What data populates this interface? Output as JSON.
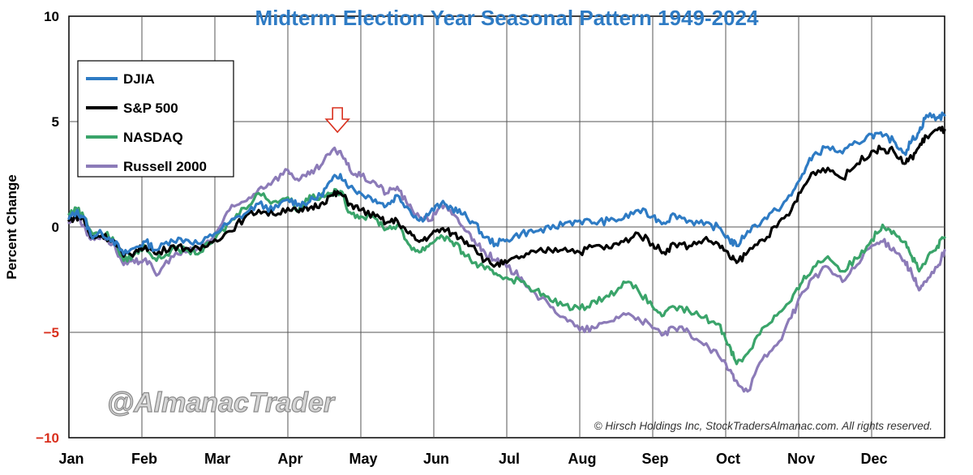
{
  "chart_data": {
    "type": "line",
    "title": "Midterm Election Year Seasonal Pattern 1949-2024",
    "ylabel": "Percent Change",
    "xlabel": "",
    "ylim": [
      -10,
      10
    ],
    "yticks": [
      10,
      5,
      0,
      -5,
      -10
    ],
    "ytick_labels": [
      "10",
      "5",
      "0",
      "−5",
      "−10"
    ],
    "months": [
      "Jan",
      "Feb",
      "Mar",
      "Apr",
      "May",
      "Jun",
      "Jul",
      "Aug",
      "Sep",
      "Oct",
      "Nov",
      "Dec"
    ],
    "x_domain": [
      0,
      12
    ],
    "grid": true,
    "legend_position": "top-left",
    "annotation": "down-arrow above late-April peak",
    "annotation_x": 3.68,
    "annotation_y": 5.0,
    "copyright": "© Hirsch Holdings Inc, StockTradersAlmanac.com. All rights reserved.",
    "watermark": "@AlmanacTrader",
    "series": [
      {
        "name": "DJIA",
        "color": "#2e7bc4",
        "points": [
          [
            0,
            0.4
          ],
          [
            0.1,
            0.7
          ],
          [
            0.2,
            0.5
          ],
          [
            0.3,
            -0.4
          ],
          [
            0.45,
            -0.3
          ],
          [
            0.6,
            -0.6
          ],
          [
            0.75,
            -1.3
          ],
          [
            0.9,
            -1.0
          ],
          [
            1.05,
            -0.7
          ],
          [
            1.2,
            -1.1
          ],
          [
            1.4,
            -0.6
          ],
          [
            1.6,
            -0.6
          ],
          [
            1.8,
            -0.8
          ],
          [
            2.0,
            -0.3
          ],
          [
            2.2,
            0.2
          ],
          [
            2.4,
            0.6
          ],
          [
            2.6,
            1.1
          ],
          [
            2.8,
            0.8
          ],
          [
            3.0,
            1.3
          ],
          [
            3.15,
            1.1
          ],
          [
            3.3,
            1.2
          ],
          [
            3.45,
            1.5
          ],
          [
            3.6,
            2.2
          ],
          [
            3.72,
            2.5
          ],
          [
            3.85,
            1.9
          ],
          [
            4.0,
            1.6
          ],
          [
            4.2,
            1.3
          ],
          [
            4.35,
            1.0
          ],
          [
            4.5,
            1.5
          ],
          [
            4.65,
            0.9
          ],
          [
            4.8,
            0.3
          ],
          [
            4.95,
            0.7
          ],
          [
            5.1,
            1.1
          ],
          [
            5.25,
            0.9
          ],
          [
            5.4,
            0.6
          ],
          [
            5.55,
            0.2
          ],
          [
            5.7,
            -0.5
          ],
          [
            5.85,
            -0.8
          ],
          [
            6.0,
            -0.6
          ],
          [
            6.2,
            -0.3
          ],
          [
            6.4,
            -0.2
          ],
          [
            6.6,
            -0.1
          ],
          [
            6.8,
            0.2
          ],
          [
            7.0,
            0.3
          ],
          [
            7.2,
            0.2
          ],
          [
            7.4,
            0.3
          ],
          [
            7.6,
            0.4
          ],
          [
            7.8,
            0.8
          ],
          [
            8.0,
            0.5
          ],
          [
            8.15,
            0.2
          ],
          [
            8.3,
            0.6
          ],
          [
            8.5,
            0.3
          ],
          [
            8.7,
            0.1
          ],
          [
            8.9,
            0.0
          ],
          [
            9.05,
            -0.6
          ],
          [
            9.15,
            -0.9
          ],
          [
            9.3,
            -0.2
          ],
          [
            9.5,
            0.3
          ],
          [
            9.7,
            0.8
          ],
          [
            9.9,
            1.5
          ],
          [
            10.05,
            2.5
          ],
          [
            10.2,
            3.4
          ],
          [
            10.4,
            3.8
          ],
          [
            10.6,
            3.5
          ],
          [
            10.8,
            4.0
          ],
          [
            11.0,
            4.4
          ],
          [
            11.15,
            4.3
          ],
          [
            11.3,
            4.1
          ],
          [
            11.45,
            3.5
          ],
          [
            11.55,
            4.1
          ],
          [
            11.65,
            4.5
          ],
          [
            11.75,
            5.3
          ],
          [
            11.9,
            5.2
          ],
          [
            12.0,
            5.3
          ]
        ]
      },
      {
        "name": "S&P 500",
        "color": "#000000",
        "points": [
          [
            0,
            0.3
          ],
          [
            0.1,
            0.5
          ],
          [
            0.2,
            0.4
          ],
          [
            0.3,
            -0.5
          ],
          [
            0.45,
            -0.4
          ],
          [
            0.6,
            -0.6
          ],
          [
            0.75,
            -1.4
          ],
          [
            0.9,
            -1.2
          ],
          [
            1.05,
            -0.9
          ],
          [
            1.2,
            -1.3
          ],
          [
            1.4,
            -0.9
          ],
          [
            1.6,
            -1.0
          ],
          [
            1.8,
            -1.1
          ],
          [
            2.0,
            -0.6
          ],
          [
            2.2,
            -0.2
          ],
          [
            2.4,
            0.4
          ],
          [
            2.6,
            0.8
          ],
          [
            2.8,
            0.6
          ],
          [
            3.0,
            0.9
          ],
          [
            3.15,
            0.7
          ],
          [
            3.3,
            0.9
          ],
          [
            3.45,
            1.1
          ],
          [
            3.6,
            1.5
          ],
          [
            3.72,
            1.6
          ],
          [
            3.85,
            1.1
          ],
          [
            4.0,
            0.8
          ],
          [
            4.2,
            0.5
          ],
          [
            4.35,
            0.2
          ],
          [
            4.5,
            0.3
          ],
          [
            4.65,
            -0.3
          ],
          [
            4.8,
            -0.7
          ],
          [
            4.95,
            -0.4
          ],
          [
            5.1,
            -0.1
          ],
          [
            5.25,
            -0.3
          ],
          [
            5.4,
            -0.6
          ],
          [
            5.55,
            -0.9
          ],
          [
            5.7,
            -1.6
          ],
          [
            5.85,
            -1.8
          ],
          [
            6.0,
            -1.7
          ],
          [
            6.2,
            -1.4
          ],
          [
            6.4,
            -1.2
          ],
          [
            6.6,
            -1.1
          ],
          [
            6.8,
            -1.0
          ],
          [
            7.0,
            -1.2
          ],
          [
            7.2,
            -0.9
          ],
          [
            7.4,
            -1.0
          ],
          [
            7.6,
            -0.7
          ],
          [
            7.8,
            -0.3
          ],
          [
            8.0,
            -0.8
          ],
          [
            8.15,
            -1.2
          ],
          [
            8.3,
            -0.8
          ],
          [
            8.5,
            -0.9
          ],
          [
            8.7,
            -0.6
          ],
          [
            8.9,
            -0.8
          ],
          [
            9.05,
            -1.4
          ],
          [
            9.15,
            -1.7
          ],
          [
            9.3,
            -1.2
          ],
          [
            9.5,
            -0.6
          ],
          [
            9.7,
            0.0
          ],
          [
            9.9,
            0.8
          ],
          [
            10.05,
            1.8
          ],
          [
            10.2,
            2.6
          ],
          [
            10.4,
            2.8
          ],
          [
            10.6,
            2.3
          ],
          [
            10.8,
            3.0
          ],
          [
            11.0,
            3.6
          ],
          [
            11.15,
            3.7
          ],
          [
            11.3,
            3.6
          ],
          [
            11.45,
            3.0
          ],
          [
            11.55,
            3.3
          ],
          [
            11.65,
            3.8
          ],
          [
            11.75,
            4.3
          ],
          [
            11.9,
            4.6
          ],
          [
            12.0,
            4.6
          ]
        ]
      },
      {
        "name": "NASDAQ",
        "color": "#3aa46a",
        "points": [
          [
            0,
            0.6
          ],
          [
            0.1,
            0.9
          ],
          [
            0.2,
            0.5
          ],
          [
            0.3,
            -0.2
          ],
          [
            0.45,
            -0.3
          ],
          [
            0.6,
            -0.5
          ],
          [
            0.75,
            -1.6
          ],
          [
            0.9,
            -1.3
          ],
          [
            1.05,
            -0.9
          ],
          [
            1.2,
            -1.6
          ],
          [
            1.4,
            -1.1
          ],
          [
            1.6,
            -1.1
          ],
          [
            1.8,
            -1.2
          ],
          [
            2.0,
            -0.6
          ],
          [
            2.2,
            0.2
          ],
          [
            2.4,
            0.9
          ],
          [
            2.6,
            1.6
          ],
          [
            2.8,
            1.2
          ],
          [
            3.0,
            1.4
          ],
          [
            3.15,
            0.8
          ],
          [
            3.3,
            1.5
          ],
          [
            3.45,
            1.4
          ],
          [
            3.6,
            1.6
          ],
          [
            3.72,
            1.7
          ],
          [
            3.85,
            0.7
          ],
          [
            4.0,
            0.5
          ],
          [
            4.2,
            0.4
          ],
          [
            4.35,
            -0.1
          ],
          [
            4.5,
            0.1
          ],
          [
            4.65,
            -0.8
          ],
          [
            4.8,
            -1.2
          ],
          [
            4.95,
            -0.8
          ],
          [
            5.1,
            -0.4
          ],
          [
            5.25,
            -0.7
          ],
          [
            5.4,
            -1.2
          ],
          [
            5.55,
            -1.7
          ],
          [
            5.7,
            -2.0
          ],
          [
            5.85,
            -2.2
          ],
          [
            6.0,
            -2.4
          ],
          [
            6.2,
            -2.6
          ],
          [
            6.4,
            -3.0
          ],
          [
            6.6,
            -3.5
          ],
          [
            6.8,
            -3.7
          ],
          [
            7.0,
            -3.9
          ],
          [
            7.2,
            -3.5
          ],
          [
            7.4,
            -3.3
          ],
          [
            7.6,
            -2.6
          ],
          [
            7.8,
            -3.0
          ],
          [
            8.0,
            -3.8
          ],
          [
            8.15,
            -4.2
          ],
          [
            8.3,
            -3.8
          ],
          [
            8.5,
            -4.0
          ],
          [
            8.7,
            -4.3
          ],
          [
            8.9,
            -4.6
          ],
          [
            9.05,
            -5.6
          ],
          [
            9.15,
            -6.5
          ],
          [
            9.3,
            -6.0
          ],
          [
            9.5,
            -4.8
          ],
          [
            9.7,
            -4.2
          ],
          [
            9.9,
            -3.5
          ],
          [
            10.05,
            -2.6
          ],
          [
            10.2,
            -1.9
          ],
          [
            10.4,
            -1.4
          ],
          [
            10.6,
            -2.1
          ],
          [
            10.8,
            -1.5
          ],
          [
            11.0,
            -0.6
          ],
          [
            11.15,
            0.1
          ],
          [
            11.3,
            -0.2
          ],
          [
            11.45,
            -0.7
          ],
          [
            11.55,
            -1.4
          ],
          [
            11.65,
            -2.1
          ],
          [
            11.75,
            -1.6
          ],
          [
            11.9,
            -0.9
          ],
          [
            12.0,
            -0.5
          ]
        ]
      },
      {
        "name": "Russell 2000",
        "color": "#8c7bb8",
        "points": [
          [
            0,
            0.2
          ],
          [
            0.1,
            0.6
          ],
          [
            0.2,
            0.1
          ],
          [
            0.3,
            -0.6
          ],
          [
            0.45,
            -0.4
          ],
          [
            0.6,
            -0.8
          ],
          [
            0.75,
            -1.8
          ],
          [
            0.9,
            -1.7
          ],
          [
            1.05,
            -1.5
          ],
          [
            1.2,
            -2.3
          ],
          [
            1.4,
            -1.4
          ],
          [
            1.6,
            -1.2
          ],
          [
            1.8,
            -1.0
          ],
          [
            2.0,
            -0.4
          ],
          [
            2.2,
            0.8
          ],
          [
            2.4,
            1.2
          ],
          [
            2.6,
            1.8
          ],
          [
            2.8,
            2.2
          ],
          [
            3.0,
            2.7
          ],
          [
            3.15,
            2.2
          ],
          [
            3.3,
            2.5
          ],
          [
            3.45,
            2.9
          ],
          [
            3.6,
            3.6
          ],
          [
            3.72,
            3.6
          ],
          [
            3.85,
            2.7
          ],
          [
            4.0,
            2.4
          ],
          [
            4.2,
            2.1
          ],
          [
            4.35,
            1.6
          ],
          [
            4.5,
            1.9
          ],
          [
            4.65,
            1.0
          ],
          [
            4.8,
            0.5
          ],
          [
            4.95,
            0.3
          ],
          [
            5.1,
            1.1
          ],
          [
            5.25,
            0.6
          ],
          [
            5.4,
            0.0
          ],
          [
            5.55,
            -0.6
          ],
          [
            5.7,
            -1.2
          ],
          [
            5.85,
            -1.6
          ],
          [
            6.0,
            -1.9
          ],
          [
            6.2,
            -2.4
          ],
          [
            6.4,
            -3.2
          ],
          [
            6.6,
            -3.8
          ],
          [
            6.8,
            -4.3
          ],
          [
            7.0,
            -4.9
          ],
          [
            7.2,
            -4.8
          ],
          [
            7.4,
            -4.5
          ],
          [
            7.6,
            -4.1
          ],
          [
            7.8,
            -4.3
          ],
          [
            8.0,
            -4.8
          ],
          [
            8.15,
            -5.1
          ],
          [
            8.3,
            -4.8
          ],
          [
            8.5,
            -5.0
          ],
          [
            8.7,
            -5.6
          ],
          [
            8.9,
            -6.1
          ],
          [
            9.05,
            -6.8
          ],
          [
            9.15,
            -7.3
          ],
          [
            9.3,
            -7.8
          ],
          [
            9.5,
            -6.3
          ],
          [
            9.7,
            -5.6
          ],
          [
            9.9,
            -4.3
          ],
          [
            10.05,
            -3.1
          ],
          [
            10.2,
            -2.4
          ],
          [
            10.4,
            -1.9
          ],
          [
            10.6,
            -2.6
          ],
          [
            10.8,
            -1.8
          ],
          [
            11.0,
            -0.9
          ],
          [
            11.15,
            -0.7
          ],
          [
            11.3,
            -1.0
          ],
          [
            11.45,
            -1.6
          ],
          [
            11.55,
            -2.2
          ],
          [
            11.65,
            -3.0
          ],
          [
            11.75,
            -2.6
          ],
          [
            11.9,
            -1.9
          ],
          [
            12.0,
            -1.1
          ]
        ]
      }
    ]
  }
}
